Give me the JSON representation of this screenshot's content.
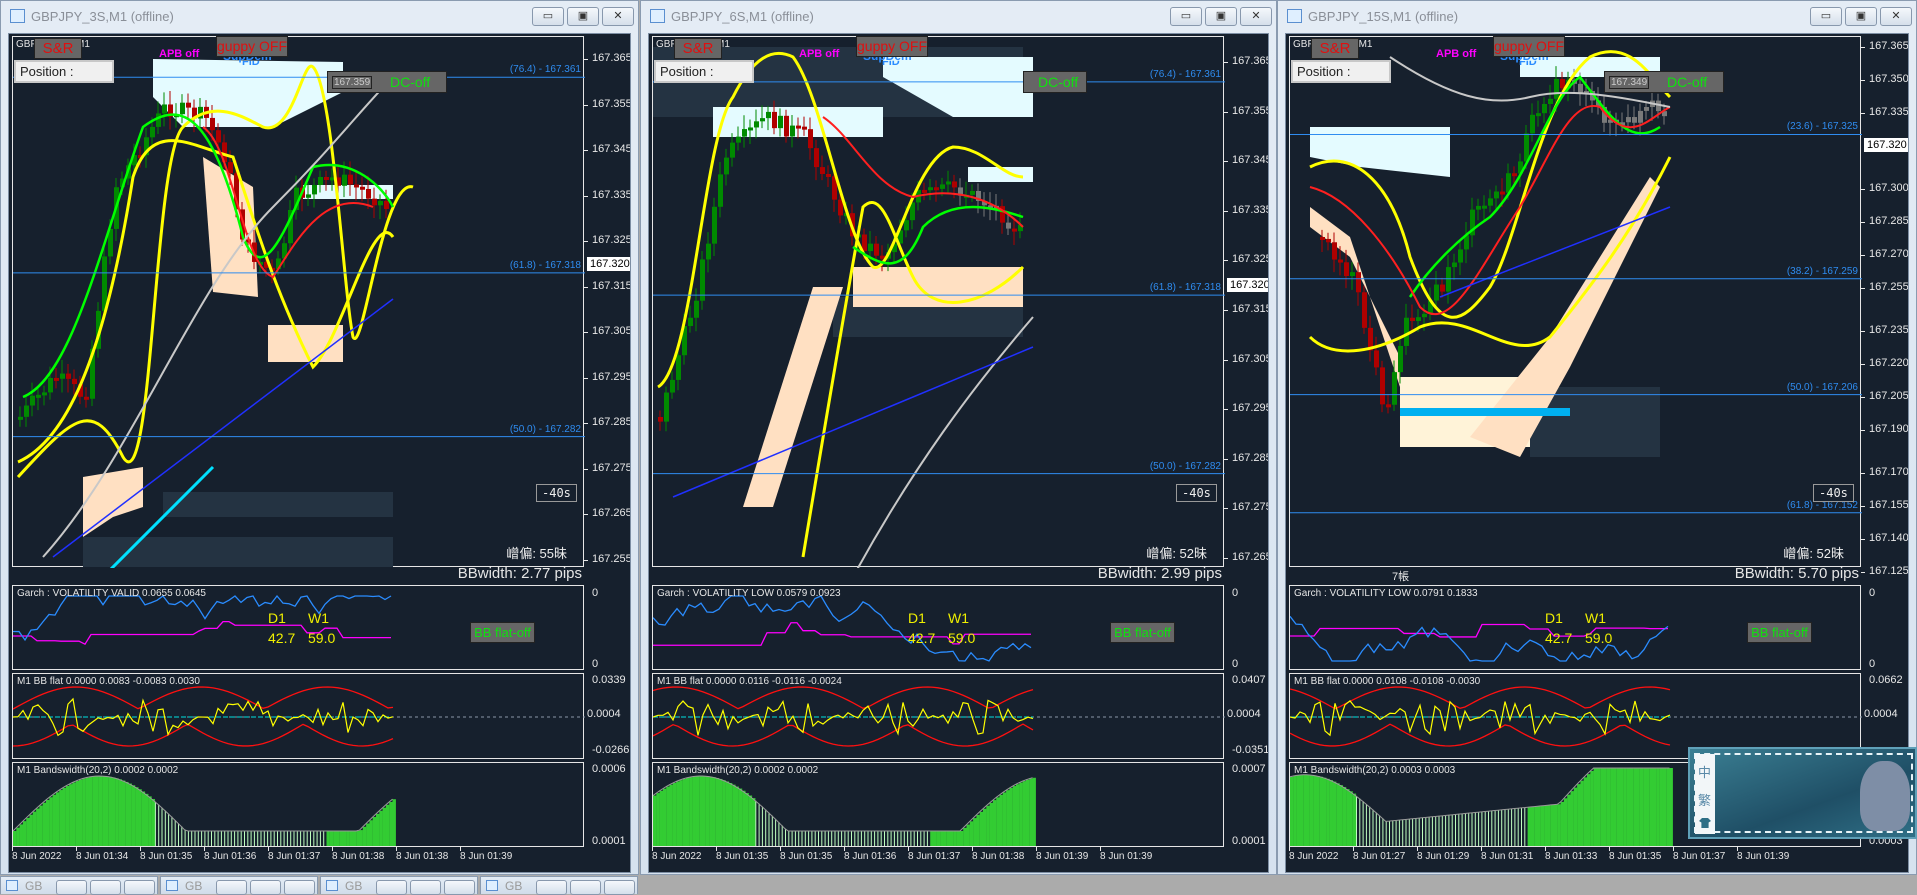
{
  "windows": [
    {
      "title": "GBPJPY_3S,M1 (offline)",
      "symbol": "GBPJPY_3S,M1",
      "controls": {
        "sr": "S&R",
        "position": "Position :",
        "apb": "APB off",
        "supdem": "SupDem",
        "fib": "FID",
        "guppy": "guppy OFF",
        "dc": "DC-off",
        "dc_price": "167.359"
      },
      "price_axis": [
        "167.365",
        "167.355",
        "167.345",
        "167.335",
        "167.325",
        "167.315",
        "167.305",
        "167.295",
        "167.285",
        "167.275",
        "167.265",
        "167.255"
      ],
      "current_price": "167.320",
      "fib_levels": [
        "(76.4) - 167.361",
        "(61.8) - 167.318",
        "(50.0) - 167.282"
      ],
      "timer": "-40s",
      "spread": "嶒偏: 55昧",
      "bbwidth": "BBwidth: 2.77 pips",
      "candle_label": "",
      "garch": {
        "label": "Garch : VOLATILITY VALID 0.0655 0.0645",
        "axis_top": "0",
        "axis_bottom": "0",
        "d1": "D1",
        "w1": "W1",
        "d1_value": "42.7",
        "w1_value": "59.0",
        "bbflat_button": "BB flat-off"
      },
      "bbflat": {
        "label": "M1 BB flat 0.0000 0.0083 -0.0083 0.0030",
        "axis_top": "0.0339",
        "axis_mid": "0.0004",
        "axis_bottom": "-0.0266"
      },
      "bandwidth": {
        "label": "M1 Bandswidth(20,2) 0.0002 0.0002",
        "axis_top": "0.0006",
        "axis_bottom": "0.0001"
      },
      "time_axis": [
        "8 Jun 2022",
        "8 Jun 01:34",
        "8 Jun 01:35",
        "8 Jun 01:36",
        "8 Jun 01:37",
        "8 Jun 01:38",
        "8 Jun 01:38",
        "8 Jun 01:39"
      ]
    },
    {
      "title": "GBPJPY_6S,M1 (offline)",
      "symbol": "GBPJPY_6S,M1",
      "controls": {
        "sr": "S&R",
        "position": "Position :",
        "apb": "APB off",
        "supdem": "SupDem",
        "fib": "FID",
        "guppy": "guppy OFF",
        "dc": "DC-off",
        "dc_price": ""
      },
      "price_axis": [
        "167.365",
        "167.355",
        "167.345",
        "167.335",
        "167.325",
        "167.315",
        "167.305",
        "167.295",
        "167.285",
        "167.275",
        "167.265"
      ],
      "current_price": "167.320",
      "fib_levels": [
        "(76.4) - 167.361",
        "(61.8) - 167.318",
        "(50.0) - 167.282"
      ],
      "timer": "-40s",
      "spread": "嶒偏: 52昧",
      "bbwidth": "BBwidth: 2.99 pips",
      "candle_label": "",
      "garch": {
        "label": "Garch : VOLATILITY LOW 0.0579 0.0923",
        "axis_top": "0",
        "axis_bottom": "0",
        "d1": "D1",
        "w1": "W1",
        "d1_value": "42.7",
        "w1_value": "59.0",
        "bbflat_button": "BB flat-off"
      },
      "bbflat": {
        "label": "M1 BB flat 0.0000 0.0116 -0.0116 -0.0024",
        "axis_top": "0.0407",
        "axis_mid": "0.0004",
        "axis_bottom": "-0.0351"
      },
      "bandwidth": {
        "label": "M1 Bandswidth(20,2) 0.0002 0.0002",
        "axis_top": "0.0007",
        "axis_bottom": "0.0001"
      },
      "time_axis": [
        "8 Jun 2022",
        "8 Jun 01:35",
        "8 Jun 01:35",
        "8 Jun 01:36",
        "8 Jun 01:37",
        "8 Jun 01:38",
        "8 Jun 01:39",
        "8 Jun 01:39"
      ]
    },
    {
      "title": "GBPJPY_15S,M1 (offline)",
      "symbol": "GBPJPY_15S,M1",
      "controls": {
        "sr": "S&R",
        "position": "Position :",
        "apb": "APB off",
        "supdem": "SupDem",
        "fib": "FID",
        "guppy": "guppy OFF",
        "dc": "DC-off",
        "dc_price": "167.349"
      },
      "price_axis": [
        "167.365",
        "167.350",
        "167.335",
        "167.300",
        "167.285",
        "167.270",
        "167.255",
        "167.235",
        "167.220",
        "167.205",
        "167.190",
        "167.170",
        "167.155",
        "167.140",
        "167.125"
      ],
      "current_price": "167.320",
      "fib_levels": [
        "(23.6) - 167.325",
        "(38.2) - 167.259",
        "(50.0) - 167.206",
        "(61.8) - 167.152"
      ],
      "timer": "-40s",
      "spread": "嶒偏: 52昧",
      "bbwidth": "BBwidth: 5.70 pips",
      "candle_label": "7帳",
      "garch": {
        "label": "Garch : VOLATILITY LOW 0.0791 0.1833",
        "axis_top": "0",
        "axis_bottom": "0",
        "d1": "D1",
        "w1": "W1",
        "d1_value": "42.7",
        "w1_value": "59.0",
        "bbflat_button": "BB flat-off"
      },
      "bbflat": {
        "label": "M1 BB flat 0.0000 0.0108 -0.0108 -0.0030",
        "axis_top": "0.0662",
        "axis_mid": "0.0004",
        "axis_bottom": ""
      },
      "bandwidth": {
        "label": "M1 Bandswidth(20,2) 0.0003 0.0003",
        "axis_top": "",
        "axis_bottom": "0.0003"
      },
      "time_axis": [
        "8 Jun 2022",
        "8 Jun 01:27",
        "8 Jun 01:29",
        "8 Jun 01:31",
        "8 Jun 01:33",
        "8 Jun 01:35",
        "8 Jun 01:37",
        "8 Jun 01:39"
      ]
    }
  ],
  "window_buttons": {
    "minimize": "▭",
    "restore": "▣",
    "close": "✕"
  },
  "taskbar": [
    {
      "label": "GB"
    },
    {
      "label": "GB"
    },
    {
      "label": "GB"
    },
    {
      "label": "GB"
    }
  ],
  "widget": {
    "chars": [
      "中",
      "繁"
    ],
    "icon": "shirt-icon"
  },
  "colors": {
    "chart_bg": "#16202d",
    "bull": "#008a00",
    "bear": "#c00000",
    "fib": "#2f8cf0",
    "yellow": "#ffff00"
  }
}
